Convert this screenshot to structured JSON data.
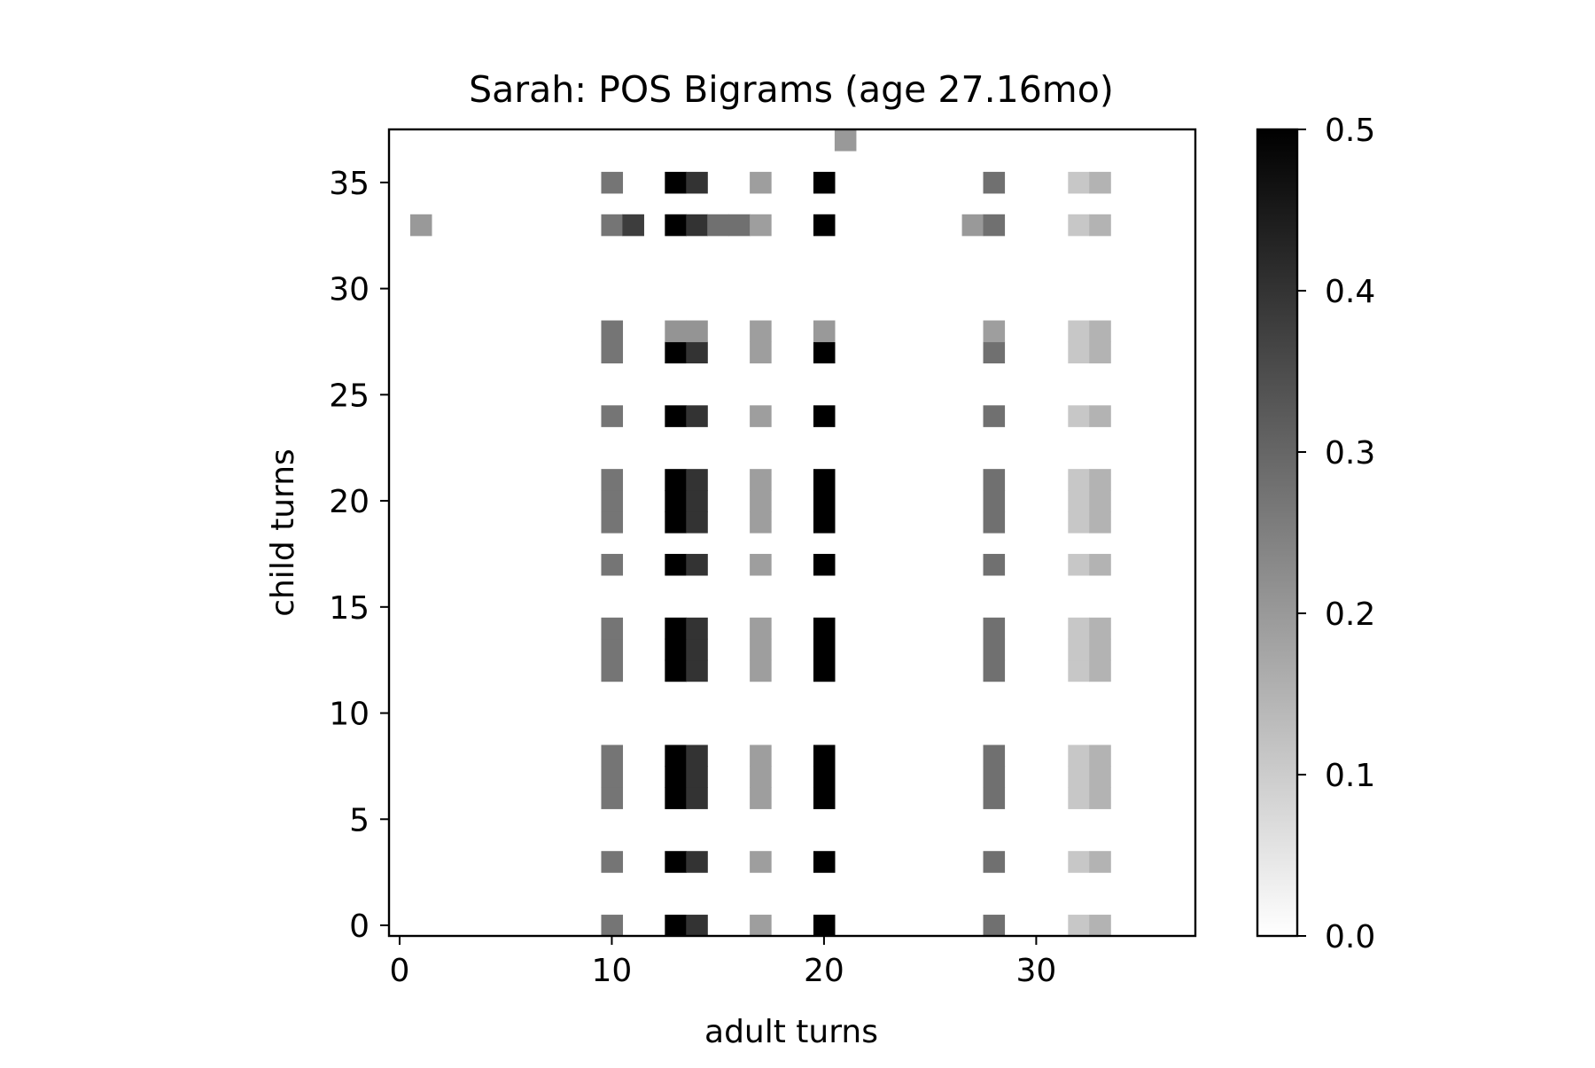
{
  "chart_data": {
    "type": "heatmap",
    "title": "Sarah: POS Bigrams (age 27.16mo)",
    "xlabel": "adult turns",
    "ylabel": "child turns",
    "xlim": [
      -0.5,
      37.5
    ],
    "ylim": [
      -0.5,
      37.5
    ],
    "x_ticks": [
      0,
      10,
      20,
      30
    ],
    "y_ticks": [
      0,
      5,
      10,
      15,
      20,
      25,
      30,
      35
    ],
    "colormap": "gray_r",
    "vmin": 0.0,
    "vmax": 0.5,
    "colorbar": {
      "ticks": [
        0.0,
        0.1,
        0.2,
        0.3,
        0.4,
        0.5
      ],
      "tick_labels": [
        "0.0",
        "0.1",
        "0.2",
        "0.3",
        "0.4",
        "0.5"
      ],
      "position": "right"
    },
    "grid": false,
    "column_profile": [
      {
        "x": 10,
        "value": 0.27
      },
      {
        "x": 13,
        "value": 0.5
      },
      {
        "x": 14,
        "value": 0.4
      },
      {
        "x": 17,
        "value": 0.19
      },
      {
        "x": 20,
        "value": 0.5
      },
      {
        "x": 28,
        "value": 0.28
      },
      {
        "x": 32,
        "value": 0.11
      },
      {
        "x": 33,
        "value": 0.15
      }
    ],
    "active_rows": [
      0,
      3,
      6,
      7,
      8,
      12,
      13,
      14,
      17,
      19,
      20,
      21,
      24,
      27
    ],
    "row_overrides": [
      {
        "y": 28,
        "values": [
          {
            "x": 10,
            "value": 0.27
          },
          {
            "x": 13,
            "value": 0.21
          },
          {
            "x": 14,
            "value": 0.21
          },
          {
            "x": 17,
            "value": 0.19
          },
          {
            "x": 20,
            "value": 0.2
          },
          {
            "x": 28,
            "value": 0.19
          },
          {
            "x": 32,
            "value": 0.11
          },
          {
            "x": 33,
            "value": 0.15
          }
        ]
      },
      {
        "y": 33,
        "values": [
          {
            "x": 1,
            "value": 0.2
          },
          {
            "x": 10,
            "value": 0.27
          },
          {
            "x": 11,
            "value": 0.38
          },
          {
            "x": 13,
            "value": 0.5
          },
          {
            "x": 14,
            "value": 0.4
          },
          {
            "x": 15,
            "value": 0.28
          },
          {
            "x": 16,
            "value": 0.28
          },
          {
            "x": 17,
            "value": 0.19
          },
          {
            "x": 20,
            "value": 0.5
          },
          {
            "x": 27,
            "value": 0.2
          },
          {
            "x": 28,
            "value": 0.28
          },
          {
            "x": 32,
            "value": 0.11
          },
          {
            "x": 33,
            "value": 0.15
          }
        ]
      },
      {
        "y": 35,
        "values": [
          {
            "x": 10,
            "value": 0.27
          },
          {
            "x": 13,
            "value": 0.5
          },
          {
            "x": 14,
            "value": 0.4
          },
          {
            "x": 17,
            "value": 0.19
          },
          {
            "x": 20,
            "value": 0.5
          },
          {
            "x": 28,
            "value": 0.28
          },
          {
            "x": 32,
            "value": 0.11
          },
          {
            "x": 33,
            "value": 0.15
          }
        ]
      },
      {
        "y": 37,
        "values": [
          {
            "x": 21,
            "value": 0.2
          }
        ]
      }
    ]
  }
}
